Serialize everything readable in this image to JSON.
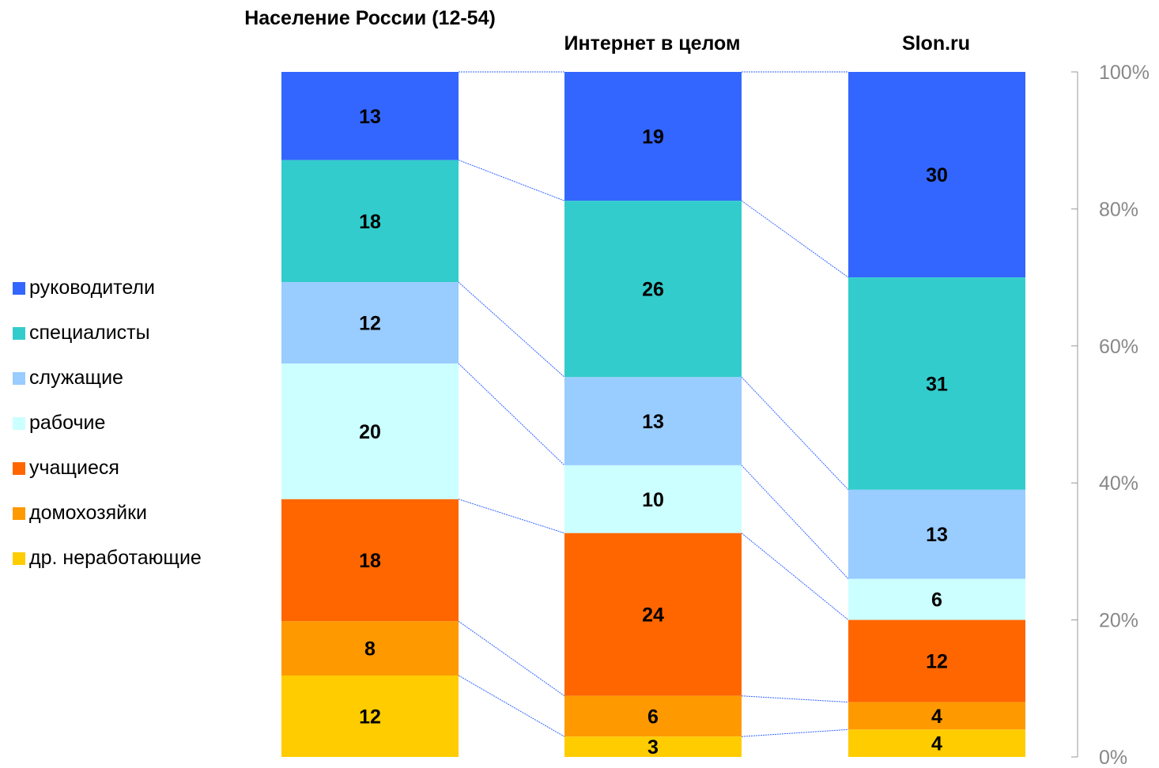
{
  "chart_data": {
    "type": "bar",
    "stacked": true,
    "normalized": true,
    "categories": [
      "Население России   (12-54)",
      "Интернет в целом",
      "Slon.ru"
    ],
    "series": [
      {
        "name": "руководители",
        "color": "#3366ff",
        "values": [
          13,
          19,
          30
        ]
      },
      {
        "name": "специалисты",
        "color": "#33cccc",
        "values": [
          18,
          26,
          31
        ]
      },
      {
        "name": "служащие",
        "color": "#99ccff",
        "values": [
          12,
          13,
          13
        ]
      },
      {
        "name": "рабочие",
        "color": "#ccffff",
        "values": [
          20,
          10,
          6
        ]
      },
      {
        "name": "учащиеся",
        "color": "#ff6600",
        "values": [
          18,
          24,
          12
        ]
      },
      {
        "name": "домохозяйки",
        "color": "#ff9900",
        "values": [
          8,
          6,
          4
        ]
      },
      {
        "name": "др. неработающие",
        "color": "#ffcc00",
        "values": [
          12,
          3,
          4
        ]
      }
    ],
    "y_axis": {
      "position": "right",
      "ticks": [
        "0%",
        "20%",
        "40%",
        "60%",
        "80%",
        "100%"
      ],
      "ylim": [
        0,
        100
      ]
    },
    "legend_position": "left",
    "grid": false,
    "series_lines": true
  }
}
